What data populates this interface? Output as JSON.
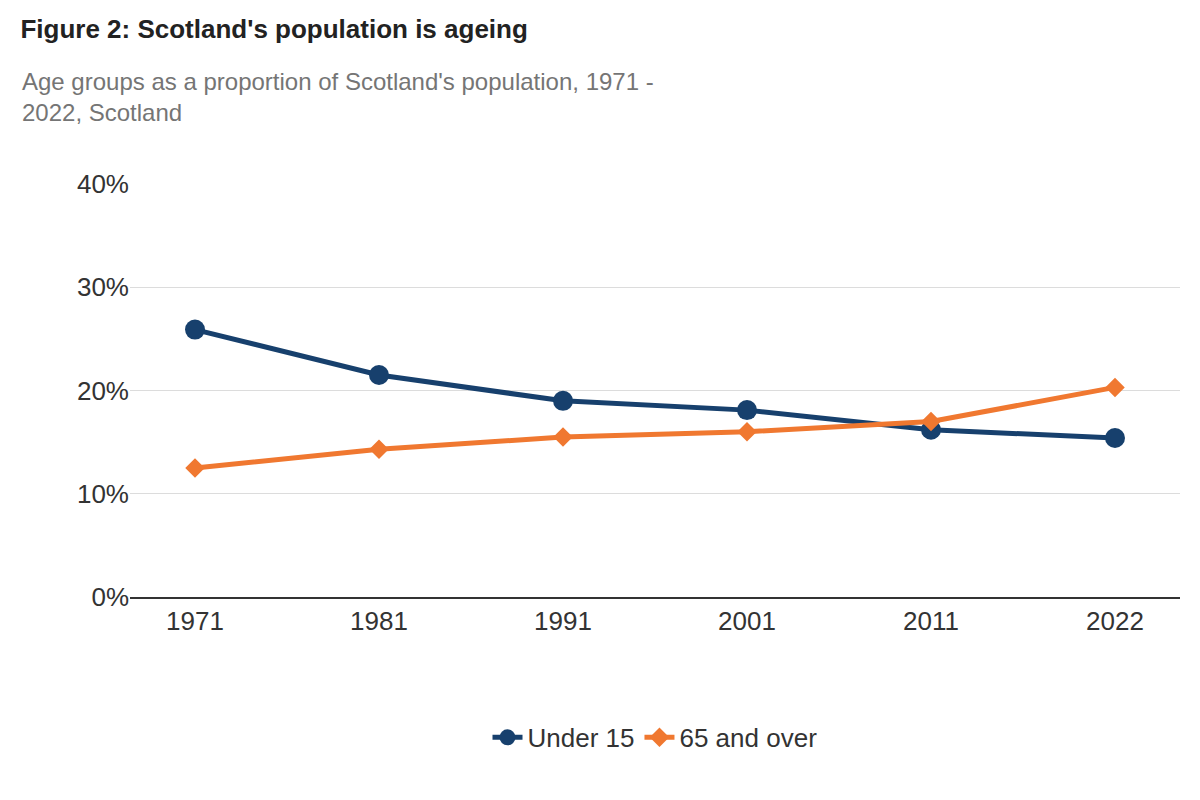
{
  "chart_data": {
    "type": "line",
    "title": "Figure 2: Scotland's population is ageing",
    "subtitle": "Age groups as a proportion of Scotland's population, 1971 - 2022, Scotland",
    "categories": [
      "1971",
      "1981",
      "1991",
      "2001",
      "2011",
      "2022"
    ],
    "series": [
      {
        "name": "Under 15",
        "color": "#17406d",
        "marker": "circle",
        "values": [
          25.9,
          21.5,
          19.0,
          18.1,
          16.2,
          15.4
        ]
      },
      {
        "name": "65 and over",
        "color": "#f07830",
        "marker": "diamond",
        "values": [
          12.5,
          14.3,
          15.5,
          16.0,
          17.0,
          20.3
        ]
      }
    ],
    "ylim": [
      0,
      40
    ],
    "yticks": [
      {
        "value": 0,
        "label": "0%"
      },
      {
        "value": 10,
        "label": "10%"
      },
      {
        "value": 20,
        "label": "20%"
      },
      {
        "value": 30,
        "label": "30%"
      },
      {
        "value": 40,
        "label": "40%"
      }
    ],
    "grid": true,
    "legend": "bottom"
  }
}
